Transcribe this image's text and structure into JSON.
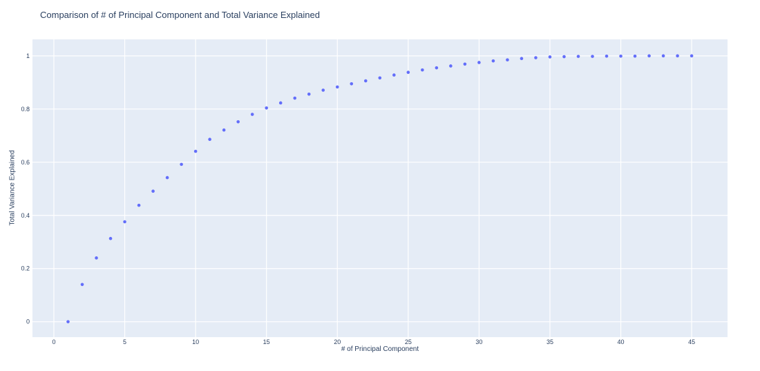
{
  "chart_data": {
    "type": "scatter",
    "title": "Comparison of # of Principal Component and Total Variance Explained",
    "xlabel": "# of Principal Component",
    "ylabel": "Total Variance Explained",
    "x": [
      1,
      2,
      3,
      4,
      5,
      6,
      7,
      8,
      9,
      10,
      11,
      12,
      13,
      14,
      15,
      16,
      17,
      18,
      19,
      20,
      21,
      22,
      23,
      24,
      25,
      26,
      27,
      28,
      29,
      30,
      31,
      32,
      33,
      34,
      35,
      36,
      37,
      38,
      39,
      40,
      41,
      42,
      43,
      44,
      45
    ],
    "y": [
      0.0,
      0.14,
      0.24,
      0.313,
      0.376,
      0.438,
      0.491,
      0.542,
      0.592,
      0.641,
      0.686,
      0.721,
      0.752,
      0.78,
      0.804,
      0.823,
      0.841,
      0.856,
      0.871,
      0.883,
      0.895,
      0.906,
      0.917,
      0.928,
      0.938,
      0.947,
      0.955,
      0.962,
      0.969,
      0.975,
      0.981,
      0.985,
      0.99,
      0.993,
      0.996,
      0.997,
      0.998,
      0.998,
      0.999,
      0.999,
      0.999,
      1.0,
      1.0,
      1.0,
      1.0
    ],
    "xticks": [
      0,
      5,
      10,
      15,
      20,
      25,
      30,
      35,
      40,
      45
    ],
    "xticklabels": [
      "0",
      "5",
      "10",
      "15",
      "20",
      "25",
      "30",
      "35",
      "40",
      "45"
    ],
    "yticks": [
      0,
      0.2,
      0.4,
      0.6,
      0.8,
      1
    ],
    "yticklabels": [
      "0",
      "0.2",
      "0.4",
      "0.6",
      "0.8",
      "1"
    ],
    "xlim": [
      -1.51,
      47.53
    ],
    "ylim": [
      -0.058,
      1.062
    ],
    "grid": true,
    "legend": false,
    "colors": {
      "marker": "#636efa",
      "plot_background": "#e5ecf6",
      "gridline": "#ffffff",
      "text": "#2a3f5f",
      "paper_background": "#ffffff"
    }
  }
}
